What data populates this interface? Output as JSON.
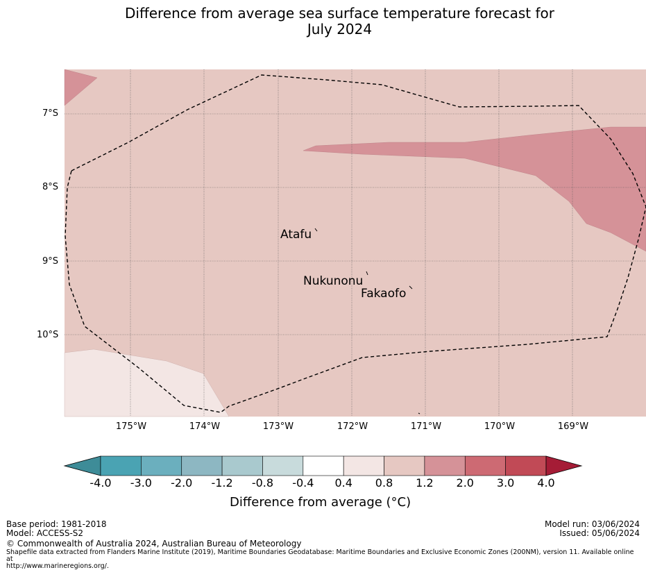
{
  "title_line1": "Difference from average sea surface temperature forecast for",
  "title_line2": "July 2024",
  "map": {
    "colors": {
      "bg_band": "#e6c8c2",
      "warm_band": "#d59298",
      "cool_band": "#f3e6e4",
      "grid": "#555555",
      "eez_line": "#000000"
    },
    "lat_labels": [
      "7°S",
      "8°S",
      "9°S",
      "10°S"
    ],
    "lon_labels": [
      "175°W",
      "174°W",
      "173°W",
      "172°W",
      "171°W",
      "170°W",
      "169°W"
    ],
    "places": [
      {
        "name": "Atafu"
      },
      {
        "name": "Nukunonu"
      },
      {
        "name": "Fakaofo"
      }
    ]
  },
  "colorbar": {
    "colors": [
      "#3e8c98",
      "#4aa3b3",
      "#6bafbe",
      "#8db7c2",
      "#a9c9ce",
      "#c8dbdc",
      "#ffffff",
      "#f3e6e4",
      "#e6c8c2",
      "#d59298",
      "#cd6a73",
      "#c14a56",
      "#a51c36"
    ],
    "ticks": [
      "-4.0",
      "-3.0",
      "-2.0",
      "-1.2",
      "-0.8",
      "-0.4",
      "0.4",
      "0.8",
      "1.2",
      "2.0",
      "3.0",
      "4.0"
    ],
    "label": "Difference from average (°C)"
  },
  "footer": {
    "base_period": "Base period: 1981-2018",
    "model": "Model: ACCESS-S2",
    "model_run": "Model run: 03/06/2024",
    "issued": "Issued: 05/06/2024",
    "copyright": "© Commonwealth of Australia 2024, Australian Bureau of Meteorology",
    "shapefile_line1": "Shapefile data extracted from Flanders Marine Institute (2019), Maritime Boundaries Geodatabase: Maritime Boundaries and Exclusive Economic Zones (200NM), version 11. Available online at",
    "shapefile_line2": "http://www.marineregions.org/."
  }
}
